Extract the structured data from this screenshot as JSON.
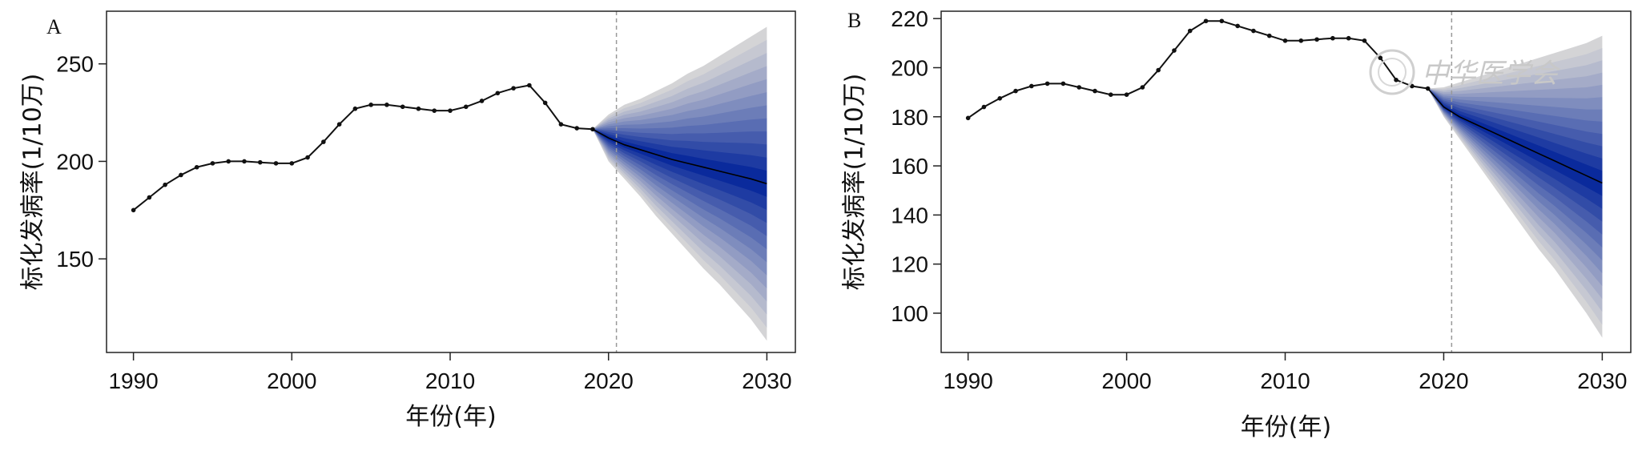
{
  "watermark": "中华医学会",
  "colors": {
    "observed_line": "#111111",
    "forecast_line": "#000000",
    "fan_outer": "#d4d4d6",
    "fan_inner": "#0a2a9c",
    "divider": "#999999"
  },
  "chart_data": [
    {
      "panel": "A",
      "type": "line",
      "title": "",
      "xlabel": "年份(年)",
      "ylabel": "标化发病率(1/10万)",
      "xlim": [
        1988.3,
        2031.8
      ],
      "ylim": [
        102,
        277
      ],
      "xticks": [
        1990,
        2000,
        2010,
        2020,
        2030
      ],
      "yticks": [
        150,
        200,
        250
      ],
      "grid": false,
      "divider_x": 2020.5,
      "observed": {
        "x": [
          1990,
          1991,
          1992,
          1993,
          1994,
          1995,
          1996,
          1997,
          1998,
          1999,
          2000,
          2001,
          2002,
          2003,
          2004,
          2005,
          2006,
          2007,
          2008,
          2009,
          2010,
          2011,
          2012,
          2013,
          2014,
          2015,
          2016,
          2017,
          2018,
          2019
        ],
        "y": [
          175,
          181.5,
          188,
          193,
          197,
          199,
          200,
          200,
          199.5,
          199,
          199,
          202,
          210,
          219,
          227,
          229,
          229,
          228,
          227,
          226,
          226,
          228,
          231,
          235,
          237.5,
          239,
          230,
          219,
          217,
          216.5
        ]
      },
      "forecast": {
        "x": [
          2019,
          2020,
          2021,
          2022,
          2023,
          2024,
          2025,
          2026,
          2027,
          2028,
          2029,
          2030
        ],
        "mean": [
          216.5,
          212,
          208.5,
          206,
          203.5,
          201,
          199,
          197,
          195,
          193,
          191,
          188.5
        ],
        "lower_95": [
          216.5,
          200,
          191,
          182,
          172,
          163,
          154,
          145,
          137,
          128,
          119,
          108
        ],
        "upper_95": [
          216.5,
          224,
          229,
          232,
          236,
          240,
          245,
          249,
          254,
          259,
          264,
          269
        ]
      }
    },
    {
      "panel": "B",
      "type": "line",
      "title": "",
      "xlabel": "年份(年)",
      "ylabel": "标化发病率(1/10万)",
      "xlim": [
        1988.3,
        2031.8
      ],
      "ylim": [
        84,
        223
      ],
      "xticks": [
        1990,
        2000,
        2010,
        2020,
        2030
      ],
      "yticks": [
        100,
        120,
        140,
        160,
        180,
        200,
        220
      ],
      "grid": false,
      "divider_x": 2020.5,
      "observed": {
        "x": [
          1990,
          1991,
          1992,
          1993,
          1994,
          1995,
          1996,
          1997,
          1998,
          1999,
          2000,
          2001,
          2002,
          2003,
          2004,
          2005,
          2006,
          2007,
          2008,
          2009,
          2010,
          2011,
          2012,
          2013,
          2014,
          2015,
          2016,
          2017,
          2018,
          2019
        ],
        "y": [
          179.5,
          184,
          187.5,
          190.5,
          192.5,
          193.5,
          193.5,
          192,
          190.5,
          189,
          189,
          192,
          199,
          207,
          215,
          219,
          219,
          217,
          215,
          213,
          211,
          211,
          211.5,
          212,
          212,
          211,
          204,
          195,
          192.5,
          191.5
        ]
      },
      "forecast": {
        "x": [
          2019,
          2020,
          2021,
          2022,
          2023,
          2024,
          2025,
          2026,
          2027,
          2028,
          2029,
          2030
        ],
        "mean": [
          191.5,
          184,
          180,
          177,
          174,
          171,
          168,
          165,
          162,
          159,
          156,
          153
        ],
        "lower_95": [
          191.5,
          180,
          171,
          162,
          153,
          144,
          135,
          126,
          118,
          109,
          100,
          90
        ],
        "upper_95": [
          191.5,
          192,
          194,
          196,
          198,
          200,
          202,
          204,
          206,
          208,
          210,
          213
        ]
      }
    }
  ]
}
